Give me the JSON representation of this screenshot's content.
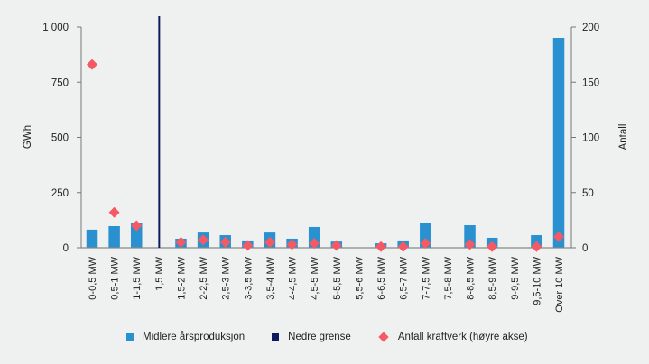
{
  "chart_data": {
    "type": "bar",
    "title": "",
    "xlabel": "",
    "ylabel": "GWh",
    "ylabel_right": "Antall",
    "ylim": [
      0,
      1000
    ],
    "ylim_right": [
      0,
      200
    ],
    "yticks": [
      "0",
      "250",
      "500",
      "750",
      "1 000"
    ],
    "yticks_values": [
      0,
      250,
      500,
      750,
      1000
    ],
    "yticks_right": [
      "0",
      "50",
      "100",
      "150",
      "200"
    ],
    "yticks_right_values": [
      0,
      50,
      100,
      150,
      200
    ],
    "categories": [
      "0-0,5 MW",
      "0,5-1 MW",
      "1-1,5 MW",
      "1,5 MW",
      "1,5-2 MW",
      "2-2,5 MW",
      "2,5-3 MW",
      "3-3,5 MW",
      "3,5-4 MW",
      "4-4,5 MW",
      "4,5-5 MW",
      "5-5,5 MW",
      "5,5-6 MW",
      "6-6,5 MW",
      "6,5-7 MW",
      "7-7,5 MW",
      "7,5-8 MW",
      "8-8,5 MW",
      "8,5-9 MW",
      "9-9,5 MW",
      "9,5-10 MW",
      "Over 10 MW"
    ],
    "series": [
      {
        "name": "Midlere årsproduksjon",
        "type": "bar",
        "axis": "left",
        "color": "#2a91d1",
        "values": [
          82,
          98,
          114,
          null,
          41,
          69,
          57,
          33,
          69,
          41,
          94,
          28,
          null,
          20,
          33,
          114,
          null,
          102,
          45,
          null,
          57,
          951
        ]
      },
      {
        "name": "Nedre grense",
        "type": "vline",
        "color": "#0d1a5e",
        "at_category": "1,5 MW"
      },
      {
        "name": "Antall kraftverk (høyre akse)",
        "type": "scatter",
        "axis": "right",
        "color": "#f55a64",
        "values": [
          166,
          32,
          20,
          null,
          5,
          7,
          5,
          2,
          5,
          3,
          4,
          2,
          null,
          1,
          1,
          4,
          null,
          3,
          1,
          null,
          1,
          10
        ]
      }
    ],
    "legend_position": "bottom",
    "grid": false
  }
}
